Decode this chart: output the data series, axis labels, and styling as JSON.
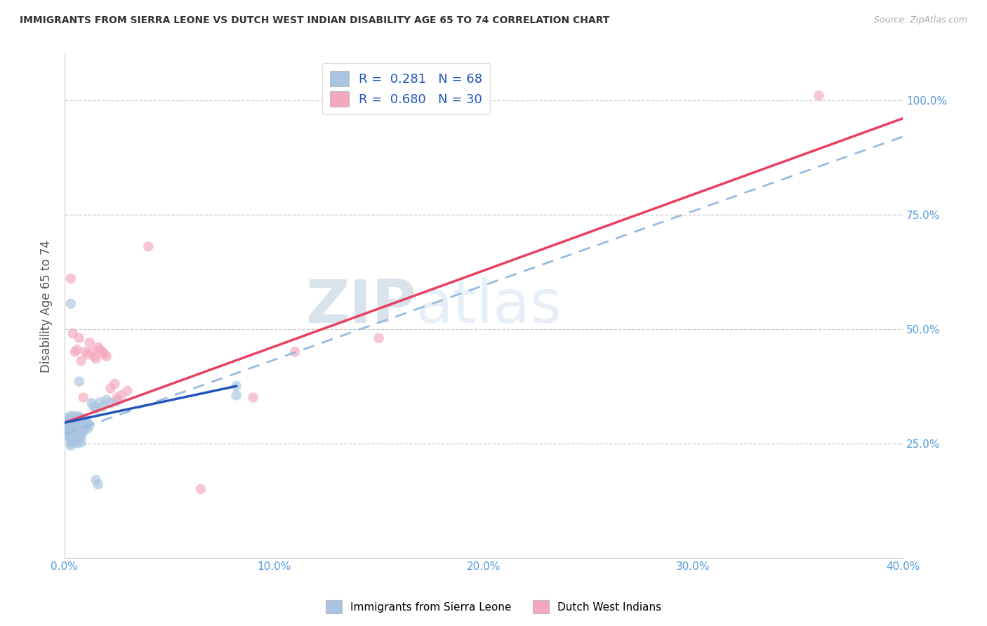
{
  "title": "IMMIGRANTS FROM SIERRA LEONE VS DUTCH WEST INDIAN DISABILITY AGE 65 TO 74 CORRELATION CHART",
  "source": "Source: ZipAtlas.com",
  "ylabel": "Disability Age 65 to 74",
  "xlim": [
    0.0,
    0.4
  ],
  "ylim": [
    0.0,
    1.1
  ],
  "xtick_values": [
    0.0,
    0.1,
    0.2,
    0.3,
    0.4
  ],
  "xtick_labels": [
    "0.0%",
    "10.0%",
    "20.0%",
    "30.0%",
    "40.0%"
  ],
  "ytick_values": [
    0.25,
    0.5,
    0.75,
    1.0
  ],
  "ytick_labels": [
    "25.0%",
    "50.0%",
    "75.0%",
    "100.0%"
  ],
  "R_blue": 0.281,
  "N_blue": 68,
  "R_pink": 0.68,
  "N_pink": 30,
  "legend_label_blue": "Immigrants from Sierra Leone",
  "legend_label_pink": "Dutch West Indians",
  "blue_marker_color": "#a8c4e0",
  "pink_marker_color": "#f4a8be",
  "blue_line_color": "#2255bb",
  "pink_line_color": "#e84060",
  "dashed_line_color": "#99bbdd",
  "watermark": "ZIPatlas",
  "pink_line_x": [
    0.0,
    0.4
  ],
  "pink_line_y": [
    0.295,
    0.96
  ],
  "dashed_line_x": [
    0.0,
    0.4
  ],
  "dashed_line_y": [
    0.27,
    0.92
  ],
  "blue_line_x": [
    0.0,
    0.082
  ],
  "blue_line_y": [
    0.295,
    0.375
  ],
  "blue_points": [
    [
      0.001,
      0.305
    ],
    [
      0.001,
      0.295
    ],
    [
      0.001,
      0.285
    ],
    [
      0.002,
      0.3
    ],
    [
      0.002,
      0.29
    ],
    [
      0.002,
      0.28
    ],
    [
      0.002,
      0.275
    ],
    [
      0.002,
      0.27
    ],
    [
      0.002,
      0.265
    ],
    [
      0.003,
      0.31
    ],
    [
      0.003,
      0.298
    ],
    [
      0.003,
      0.285
    ],
    [
      0.003,
      0.275
    ],
    [
      0.003,
      0.268
    ],
    [
      0.003,
      0.26
    ],
    [
      0.003,
      0.255
    ],
    [
      0.003,
      0.25
    ],
    [
      0.003,
      0.245
    ],
    [
      0.004,
      0.305
    ],
    [
      0.004,
      0.295
    ],
    [
      0.004,
      0.285
    ],
    [
      0.004,
      0.275
    ],
    [
      0.004,
      0.265
    ],
    [
      0.004,
      0.255
    ],
    [
      0.005,
      0.31
    ],
    [
      0.005,
      0.298
    ],
    [
      0.005,
      0.285
    ],
    [
      0.005,
      0.275
    ],
    [
      0.005,
      0.265
    ],
    [
      0.005,
      0.255
    ],
    [
      0.006,
      0.305
    ],
    [
      0.006,
      0.295
    ],
    [
      0.006,
      0.283
    ],
    [
      0.006,
      0.272
    ],
    [
      0.006,
      0.26
    ],
    [
      0.006,
      0.25
    ],
    [
      0.007,
      0.308
    ],
    [
      0.007,
      0.295
    ],
    [
      0.007,
      0.282
    ],
    [
      0.007,
      0.27
    ],
    [
      0.007,
      0.258
    ],
    [
      0.008,
      0.305
    ],
    [
      0.008,
      0.292
    ],
    [
      0.008,
      0.278
    ],
    [
      0.008,
      0.265
    ],
    [
      0.008,
      0.252
    ],
    [
      0.009,
      0.302
    ],
    [
      0.009,
      0.288
    ],
    [
      0.009,
      0.275
    ],
    [
      0.01,
      0.3
    ],
    [
      0.01,
      0.285
    ],
    [
      0.011,
      0.295
    ],
    [
      0.011,
      0.282
    ],
    [
      0.012,
      0.29
    ],
    [
      0.013,
      0.338
    ],
    [
      0.014,
      0.33
    ],
    [
      0.015,
      0.325
    ],
    [
      0.017,
      0.34
    ],
    [
      0.018,
      0.33
    ],
    [
      0.02,
      0.345
    ],
    [
      0.022,
      0.338
    ],
    [
      0.025,
      0.342
    ],
    [
      0.003,
      0.555
    ],
    [
      0.007,
      0.385
    ],
    [
      0.015,
      0.17
    ],
    [
      0.016,
      0.16
    ],
    [
      0.082,
      0.375
    ],
    [
      0.082,
      0.355
    ]
  ],
  "pink_points": [
    [
      0.003,
      0.61
    ],
    [
      0.004,
      0.49
    ],
    [
      0.005,
      0.45
    ],
    [
      0.006,
      0.455
    ],
    [
      0.007,
      0.48
    ],
    [
      0.008,
      0.43
    ],
    [
      0.009,
      0.35
    ],
    [
      0.01,
      0.45
    ],
    [
      0.011,
      0.445
    ],
    [
      0.012,
      0.47
    ],
    [
      0.013,
      0.45
    ],
    [
      0.014,
      0.44
    ],
    [
      0.015,
      0.435
    ],
    [
      0.016,
      0.46
    ],
    [
      0.017,
      0.455
    ],
    [
      0.018,
      0.45
    ],
    [
      0.019,
      0.445
    ],
    [
      0.02,
      0.44
    ],
    [
      0.022,
      0.37
    ],
    [
      0.024,
      0.38
    ],
    [
      0.025,
      0.35
    ],
    [
      0.027,
      0.355
    ],
    [
      0.03,
      0.365
    ],
    [
      0.065,
      0.15
    ],
    [
      0.09,
      0.35
    ],
    [
      0.11,
      0.45
    ],
    [
      0.15,
      0.48
    ],
    [
      0.16,
      1.02
    ],
    [
      0.36,
      1.01
    ],
    [
      0.04,
      0.68
    ]
  ]
}
